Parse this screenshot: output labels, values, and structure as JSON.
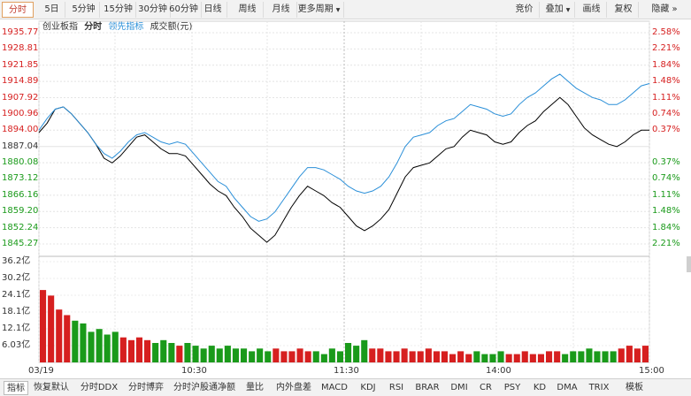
{
  "toolbar": {
    "period_tabs": [
      "分时",
      "5日",
      "5分钟",
      "15分钟",
      "30分钟",
      "60分钟",
      "日线",
      "周线",
      "月线",
      "更多周期"
    ],
    "more_arrow": "▼",
    "right_buttons": [
      "竞价",
      "叠加",
      "画线",
      "复权",
      "隐藏"
    ],
    "overlay_arrow": "▼",
    "hide_arrow": "»"
  },
  "legend": {
    "index_name": "创业板指",
    "timeshare": "分时",
    "leading": "领先指标",
    "volume": "成交额(元)"
  },
  "price_axis": {
    "left": [
      "1935.77",
      "1928.81",
      "1921.85",
      "1914.89",
      "1907.92",
      "1900.96",
      "1894.00",
      "1887.04",
      "1880.08",
      "1873.12",
      "1866.16",
      "1859.20",
      "1852.24",
      "1845.27"
    ],
    "right": [
      "2.58%",
      "2.21%",
      "1.84%",
      "1.48%",
      "1.11%",
      "0.74%",
      "0.37%",
      "",
      "0.37%",
      "0.74%",
      "1.11%",
      "1.48%",
      "1.84%",
      "2.21%"
    ]
  },
  "volume_axis": [
    "36.2亿",
    "30.2亿",
    "24.1亿",
    "18.1亿",
    "12.1亿",
    "6.03亿"
  ],
  "time_axis": [
    "03/19",
    "10:30",
    "11:30",
    "14:00",
    "15:00"
  ],
  "colors": {
    "up": "#d61f1f",
    "down": "#1a9a1a",
    "index": "#000000",
    "leading": "#2a8fd8"
  },
  "chart_data": {
    "type": "line",
    "series": [
      {
        "name": "分时",
        "color": "#000000",
        "values": [
          1893,
          1897,
          1903,
          1904,
          1901,
          1897,
          1893,
          1888,
          1882,
          1880,
          1883,
          1887,
          1891,
          1892,
          1889,
          1886,
          1884,
          1884,
          1883,
          1879,
          1875,
          1871,
          1868,
          1866,
          1861,
          1857,
          1852,
          1849,
          1846,
          1849,
          1855,
          1861,
          1866,
          1870,
          1868,
          1866,
          1863,
          1861,
          1857,
          1853,
          1851,
          1853,
          1856,
          1860,
          1867,
          1874,
          1878,
          1879,
          1880,
          1883,
          1886,
          1887,
          1891,
          1894,
          1893,
          1892,
          1889,
          1888,
          1889,
          1893,
          1896,
          1898,
          1902,
          1905,
          1908,
          1905,
          1900,
          1895,
          1892,
          1890,
          1888,
          1887,
          1889,
          1892,
          1894,
          1894
        ]
      },
      {
        "name": "领先指标",
        "color": "#2a8fd8",
        "values": [
          1894,
          1899,
          1903,
          1904,
          1901,
          1897,
          1893,
          1888,
          1884,
          1882,
          1885,
          1889,
          1892,
          1893,
          1891,
          1889,
          1888,
          1889,
          1888,
          1884,
          1880,
          1876,
          1872,
          1870,
          1865,
          1861,
          1857,
          1855,
          1856,
          1859,
          1864,
          1869,
          1874,
          1878,
          1878,
          1877,
          1875,
          1873,
          1870,
          1868,
          1867,
          1868,
          1870,
          1874,
          1880,
          1887,
          1891,
          1892,
          1893,
          1896,
          1898,
          1899,
          1902,
          1905,
          1904,
          1903,
          1901,
          1900,
          1901,
          1905,
          1908,
          1910,
          1913,
          1916,
          1918,
          1915,
          1912,
          1910,
          1908,
          1907,
          1905,
          1905,
          1907,
          1910,
          1913,
          1914
        ]
      }
    ],
    "volume": [
      26,
      24,
      19,
      17,
      15,
      14,
      11,
      12,
      10,
      11,
      9,
      8,
      9,
      8,
      7,
      8,
      7,
      6,
      7,
      6,
      5,
      6,
      5,
      6,
      5,
      5,
      4,
      5,
      4,
      5,
      4,
      4,
      5,
      4,
      4,
      3,
      5,
      4,
      7,
      6,
      8,
      5,
      5,
      4,
      4,
      5,
      4,
      4,
      5,
      4,
      4,
      3,
      4,
      3,
      4,
      3,
      3,
      4,
      3,
      3,
      4,
      3,
      3,
      4,
      4,
      3,
      4,
      4,
      5,
      4,
      4,
      4,
      5,
      6,
      5,
      6
    ],
    "ylim": [
      1845.27,
      1935.77
    ],
    "volume_max": 36.2
  }
}
